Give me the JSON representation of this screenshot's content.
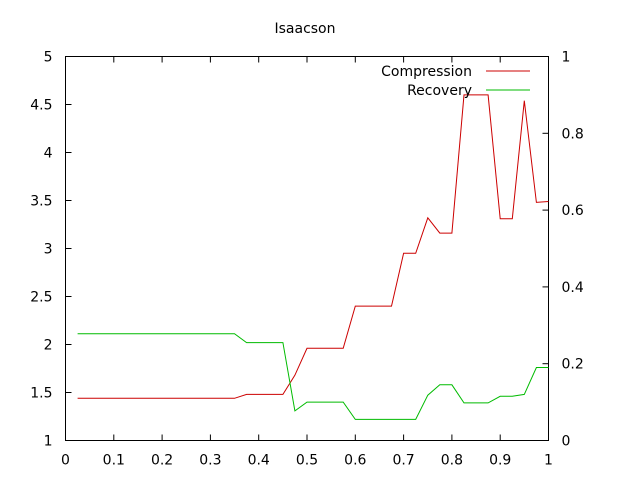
{
  "chart_data": {
    "type": "line",
    "title": "Isaacson",
    "xlabel": "",
    "ylabel": "",
    "y2label": "",
    "xlim": [
      0,
      1
    ],
    "ylim": [
      1,
      5
    ],
    "y2lim": [
      0,
      1
    ],
    "x_ticks": [
      "0",
      "0.1",
      "0.2",
      "0.3",
      "0.4",
      "0.5",
      "0.6",
      "0.7",
      "0.8",
      "0.9",
      "1"
    ],
    "y_ticks": [
      "1",
      "1.5",
      "2",
      "2.5",
      "3",
      "3.5",
      "4",
      "4.5",
      "5"
    ],
    "y2_ticks": [
      "0",
      "0.2",
      "0.4",
      "0.6",
      "0.8",
      "1"
    ],
    "grid": false,
    "legend_position": "top-right",
    "series": [
      {
        "name": "Compression",
        "axis": "left",
        "color": "#cc0000",
        "points": [
          [
            0.025,
            1.44
          ],
          [
            0.35,
            1.44
          ],
          [
            0.375,
            1.48
          ],
          [
            0.45,
            1.48
          ],
          [
            0.475,
            1.68
          ],
          [
            0.5,
            1.96
          ],
          [
            0.575,
            1.96
          ],
          [
            0.6,
            2.4
          ],
          [
            0.675,
            2.4
          ],
          [
            0.7,
            2.95
          ],
          [
            0.725,
            2.95
          ],
          [
            0.75,
            3.32
          ],
          [
            0.775,
            3.16
          ],
          [
            0.8,
            3.16
          ],
          [
            0.825,
            4.6
          ],
          [
            0.875,
            4.6
          ],
          [
            0.9,
            3.31
          ],
          [
            0.925,
            3.31
          ],
          [
            0.95,
            4.54
          ],
          [
            0.975,
            3.48
          ],
          [
            1.0,
            3.49
          ]
        ]
      },
      {
        "name": "Recovery",
        "axis": "right",
        "color": "#00bb00",
        "points": [
          [
            0.025,
            0.278
          ],
          [
            0.35,
            0.278
          ],
          [
            0.375,
            0.255
          ],
          [
            0.45,
            0.255
          ],
          [
            0.475,
            0.077
          ],
          [
            0.5,
            0.1
          ],
          [
            0.575,
            0.1
          ],
          [
            0.6,
            0.055
          ],
          [
            0.725,
            0.055
          ],
          [
            0.75,
            0.118
          ],
          [
            0.775,
            0.145
          ],
          [
            0.8,
            0.145
          ],
          [
            0.825,
            0.098
          ],
          [
            0.875,
            0.098
          ],
          [
            0.9,
            0.115
          ],
          [
            0.925,
            0.115
          ],
          [
            0.95,
            0.12
          ],
          [
            0.975,
            0.19
          ],
          [
            1.0,
            0.19
          ]
        ]
      }
    ]
  }
}
